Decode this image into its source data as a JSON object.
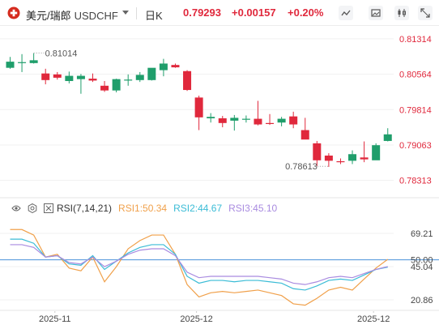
{
  "header": {
    "pair_name": "美元/瑞郎",
    "symbol": "USDCHF",
    "timeframe": "日K",
    "price": "0.79293",
    "change": "+0.00157",
    "change_pct": "+0.20%",
    "icons": [
      "line-chart-icon",
      "image-icon",
      "candle-settings-icon",
      "expand-icon"
    ]
  },
  "colors": {
    "up": "#1f9e6b",
    "down": "#e0283c",
    "rsi1": "#f0a04a",
    "rsi2": "#3bbcd6",
    "rsi3": "#a98be0",
    "level": "#4a90d9"
  },
  "indicator": {
    "name": "RSI(7,14,21)",
    "rsi1_label": "RSI1:50.34",
    "rsi2_label": "RSI2:44.67",
    "rsi3_label": "RSI3:45.10"
  },
  "chart_data": [
    {
      "type": "candlestick",
      "title": "",
      "y_ticks": [
        "0.81314",
        "0.80564",
        "0.79814",
        "0.79063",
        "0.78313"
      ],
      "ylim": [
        0.7805,
        0.8145
      ],
      "annotations": {
        "high": "0.81014",
        "low": "0.78613"
      },
      "candles": [
        {
          "o": 0.807,
          "h": 0.8093,
          "l": 0.8068,
          "c": 0.8083
        },
        {
          "o": 0.8081,
          "h": 0.8099,
          "l": 0.8061,
          "c": 0.8082
        },
        {
          "o": 0.808,
          "h": 0.8101,
          "l": 0.8079,
          "c": 0.8086
        },
        {
          "o": 0.8058,
          "h": 0.8068,
          "l": 0.8035,
          "c": 0.8044
        },
        {
          "o": 0.8056,
          "h": 0.8061,
          "l": 0.8045,
          "c": 0.8049
        },
        {
          "o": 0.8042,
          "h": 0.8062,
          "l": 0.8037,
          "c": 0.8053
        },
        {
          "o": 0.8046,
          "h": 0.8057,
          "l": 0.8015,
          "c": 0.8053
        },
        {
          "o": 0.8047,
          "h": 0.8058,
          "l": 0.804,
          "c": 0.8043
        },
        {
          "o": 0.8032,
          "h": 0.8042,
          "l": 0.8019,
          "c": 0.8022
        },
        {
          "o": 0.8022,
          "h": 0.8047,
          "l": 0.8018,
          "c": 0.8046
        },
        {
          "o": 0.8043,
          "h": 0.8056,
          "l": 0.8032,
          "c": 0.8045
        },
        {
          "o": 0.8044,
          "h": 0.8061,
          "l": 0.804,
          "c": 0.8055
        },
        {
          "o": 0.8044,
          "h": 0.8069,
          "l": 0.8043,
          "c": 0.807
        },
        {
          "o": 0.8065,
          "h": 0.8089,
          "l": 0.8052,
          "c": 0.8079
        },
        {
          "o": 0.8076,
          "h": 0.8079,
          "l": 0.807,
          "c": 0.8071
        },
        {
          "o": 0.8063,
          "h": 0.8065,
          "l": 0.8021,
          "c": 0.8023
        },
        {
          "o": 0.8007,
          "h": 0.8011,
          "l": 0.7938,
          "c": 0.7965
        },
        {
          "o": 0.7963,
          "h": 0.7974,
          "l": 0.7954,
          "c": 0.7966
        },
        {
          "o": 0.7963,
          "h": 0.7968,
          "l": 0.7944,
          "c": 0.7953
        },
        {
          "o": 0.7958,
          "h": 0.797,
          "l": 0.7937,
          "c": 0.7964
        },
        {
          "o": 0.7962,
          "h": 0.7969,
          "l": 0.7954,
          "c": 0.7962
        },
        {
          "o": 0.7962,
          "h": 0.8,
          "l": 0.7948,
          "c": 0.795
        },
        {
          "o": 0.7953,
          "h": 0.7972,
          "l": 0.7949,
          "c": 0.7952
        },
        {
          "o": 0.7954,
          "h": 0.7966,
          "l": 0.7946,
          "c": 0.7962
        },
        {
          "o": 0.7967,
          "h": 0.7977,
          "l": 0.7942,
          "c": 0.795
        },
        {
          "o": 0.7938,
          "h": 0.7964,
          "l": 0.7919,
          "c": 0.7918
        },
        {
          "o": 0.791,
          "h": 0.7915,
          "l": 0.7862,
          "c": 0.7874
        },
        {
          "o": 0.7884,
          "h": 0.7889,
          "l": 0.786,
          "c": 0.7873
        },
        {
          "o": 0.7872,
          "h": 0.7878,
          "l": 0.7866,
          "c": 0.7871
        },
        {
          "o": 0.7873,
          "h": 0.7895,
          "l": 0.7866,
          "c": 0.7887
        },
        {
          "o": 0.788,
          "h": 0.7914,
          "l": 0.787,
          "c": 0.7876
        },
        {
          "o": 0.7874,
          "h": 0.791,
          "l": 0.7877,
          "c": 0.7906
        },
        {
          "o": 0.7915,
          "h": 0.7942,
          "l": 0.7914,
          "c": 0.7929
        }
      ]
    },
    {
      "type": "line",
      "title": "",
      "x_tick_labels": [
        {
          "index": 4,
          "label": "2025-11"
        },
        {
          "index": 16,
          "label": "2025-12"
        },
        {
          "index": 31,
          "label": "2025-12"
        }
      ],
      "y_ticks": [
        "69.21",
        "50.00",
        "45.04",
        "20.86"
      ],
      "ylim": [
        15,
        81
      ],
      "reference_line": 50,
      "series": [
        {
          "name": "RSI1",
          "color": "#f0a04a",
          "values": [
            72,
            72,
            68,
            52,
            54,
            44,
            42,
            52,
            34,
            45,
            58,
            64,
            68,
            68,
            54,
            32,
            23,
            26,
            27,
            26,
            27,
            28,
            26,
            24,
            18,
            17,
            22,
            28,
            30,
            28,
            36,
            44,
            50.34
          ]
        },
        {
          "name": "RSI2",
          "color": "#3bbcd6",
          "values": [
            65,
            65,
            62,
            52,
            53,
            47,
            46,
            53,
            43,
            49,
            55,
            59,
            61,
            61,
            54,
            38,
            33,
            35,
            35,
            34,
            35,
            35,
            34,
            33,
            29,
            28,
            31,
            35,
            36,
            35,
            39,
            43,
            44.67
          ]
        },
        {
          "name": "RSI3",
          "color": "#a98be0",
          "values": [
            61,
            61,
            59,
            52,
            53,
            48,
            47,
            52,
            45,
            49,
            54,
            57,
            58,
            58,
            53,
            41,
            37,
            38,
            38,
            38,
            38,
            38,
            37,
            36,
            33,
            32,
            34,
            37,
            38,
            37,
            40,
            43,
            45.1
          ]
        }
      ]
    }
  ]
}
